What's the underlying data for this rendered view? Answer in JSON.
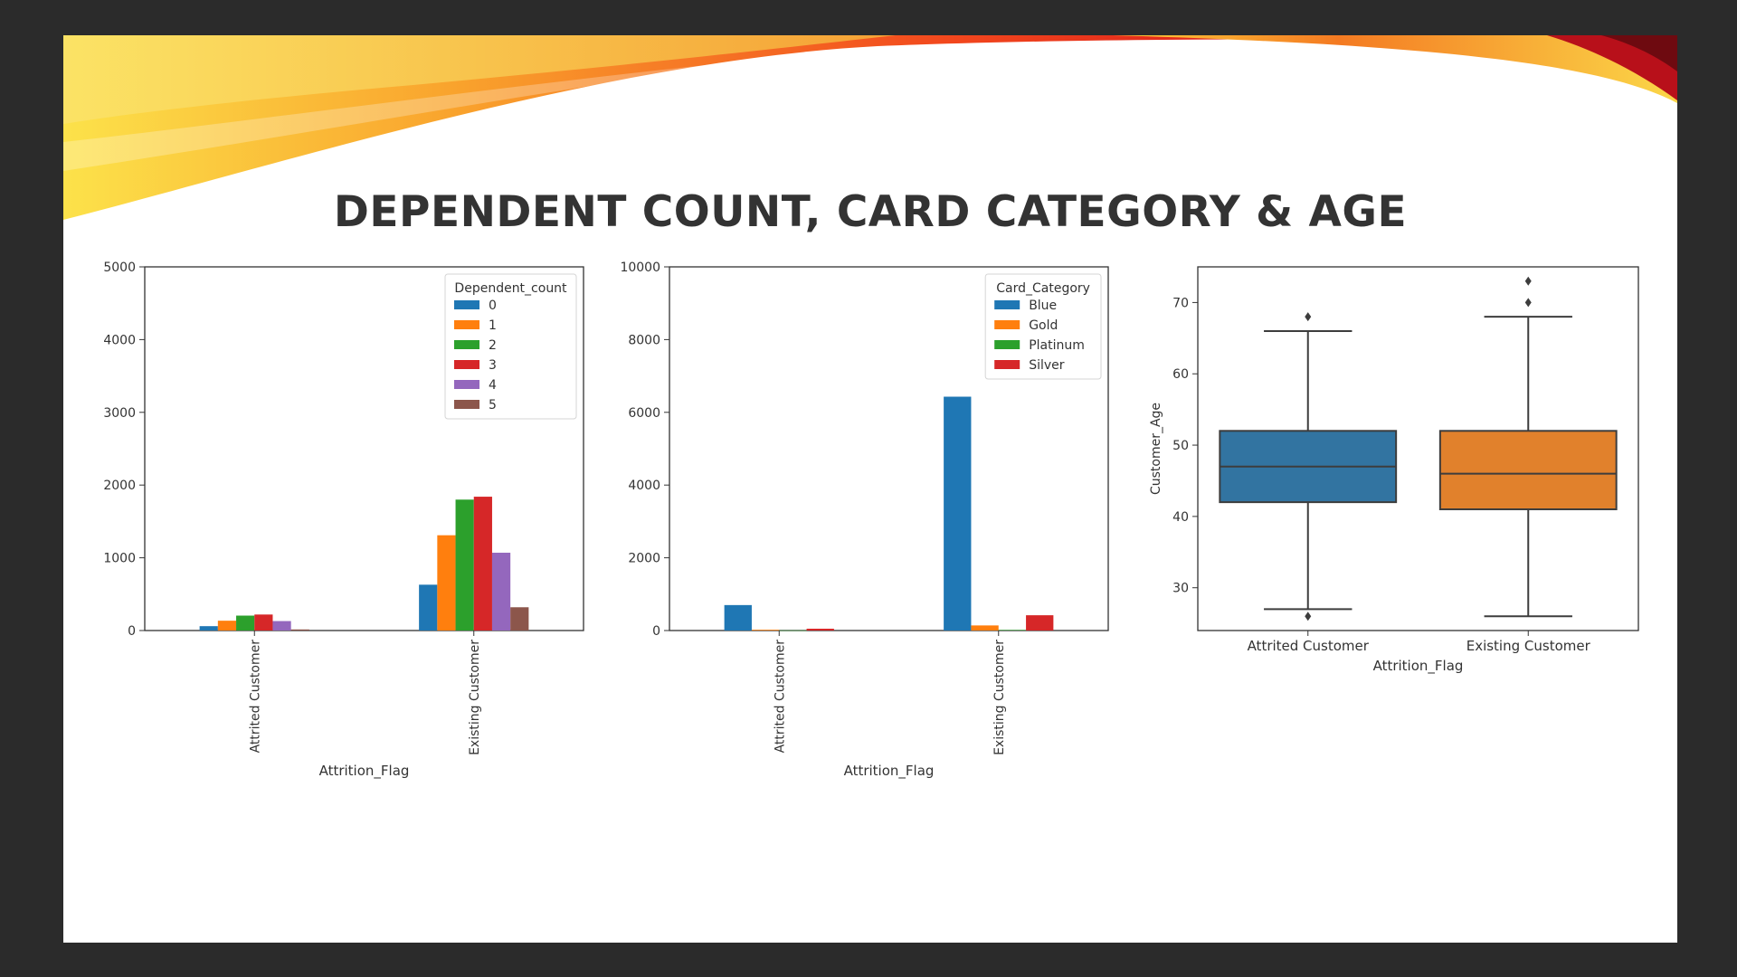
{
  "slide": {
    "title": "DEPENDENT COUNT, CARD CATEGORY & AGE",
    "banner_colors": [
      "#fce24a",
      "#f9a12c",
      "#f2471d",
      "#d8141a",
      "#8e0c12"
    ]
  },
  "chart_data": [
    {
      "type": "bar",
      "title": "",
      "xlabel": "Attrition_Flag",
      "ylabel": "",
      "categories": [
        "Attrited Customer",
        "Existing Customer"
      ],
      "ylim": [
        0,
        5000
      ],
      "yticks": [
        0,
        1000,
        2000,
        3000,
        4000,
        5000
      ],
      "grid": false,
      "legend": {
        "title": "Dependent_count",
        "position": "top-right"
      },
      "series": [
        {
          "name": "0",
          "color": "#1f77b4",
          "values": [
            60,
            630
          ]
        },
        {
          "name": "1",
          "color": "#ff7f0e",
          "values": [
            135,
            1310
          ]
        },
        {
          "name": "2",
          "color": "#2ca02c",
          "values": [
            205,
            1800
          ]
        },
        {
          "name": "3",
          "color": "#d62728",
          "values": [
            220,
            1840
          ]
        },
        {
          "name": "4",
          "color": "#9467bd",
          "values": [
            130,
            1070
          ]
        },
        {
          "name": "5",
          "color": "#8c564b",
          "values": [
            15,
            320
          ]
        }
      ]
    },
    {
      "type": "bar",
      "title": "",
      "xlabel": "Attrition_Flag",
      "ylabel": "",
      "categories": [
        "Attrited Customer",
        "Existing Customer"
      ],
      "ylim": [
        0,
        10000
      ],
      "yticks": [
        0,
        2000,
        4000,
        6000,
        8000,
        10000
      ],
      "grid": false,
      "legend": {
        "title": "Card_Category",
        "position": "top-right"
      },
      "series": [
        {
          "name": "Blue",
          "color": "#1f77b4",
          "values": [
            700,
            6430
          ]
        },
        {
          "name": "Gold",
          "color": "#ff7f0e",
          "values": [
            20,
            140
          ]
        },
        {
          "name": "Platinum",
          "color": "#2ca02c",
          "values": [
            5,
            15
          ]
        },
        {
          "name": "Silver",
          "color": "#d62728",
          "values": [
            50,
            420
          ]
        }
      ]
    },
    {
      "type": "box",
      "title": "",
      "xlabel": "Attrition_Flag",
      "ylabel": "Customer_Age",
      "categories": [
        "Attrited Customer",
        "Existing Customer"
      ],
      "ylim": [
        24,
        75
      ],
      "yticks": [
        30,
        40,
        50,
        60,
        70
      ],
      "grid": false,
      "boxes": [
        {
          "name": "Attrited Customer",
          "color": "#3274a1",
          "whisker_low": 27,
          "q1": 42,
          "median": 47,
          "q3": 52,
          "whisker_high": 66,
          "outliers": [
            26,
            68
          ]
        },
        {
          "name": "Existing Customer",
          "color": "#e1812c",
          "whisker_low": 26,
          "q1": 41,
          "median": 46,
          "q3": 52,
          "whisker_high": 68,
          "outliers": [
            70,
            73
          ]
        }
      ]
    }
  ]
}
